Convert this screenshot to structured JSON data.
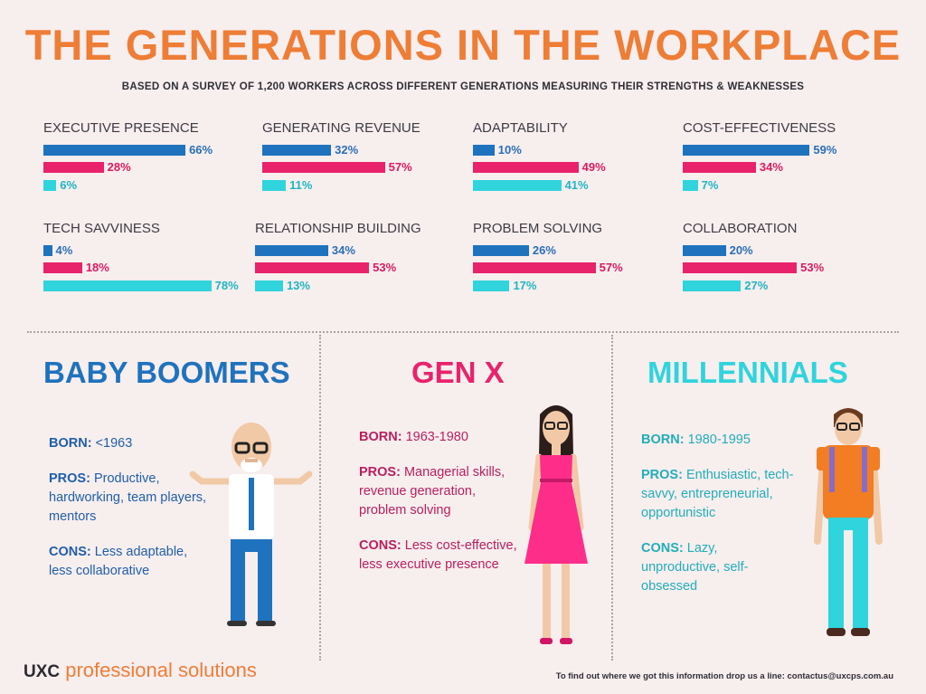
{
  "title": "THE GENERATIONS IN THE WORKPLACE",
  "subtitle": "BASED ON A SURVEY OF 1,200 WORKERS ACROSS DIFFERENT GENERATIONS MEASURING THEIR STRENGTHS & WEAKNESSES",
  "colors": {
    "boomers": "#1f72bd",
    "genx": "#e9236b",
    "millennials": "#2fd4dc",
    "accent": "#ee7d36"
  },
  "chart_data": {
    "type": "bar",
    "series": [
      {
        "key": "boomers"
      },
      {
        "key": "genx"
      },
      {
        "key": "millennials"
      }
    ],
    "charts": [
      {
        "label": "EXECUTIVE PRESENCE",
        "values": [
          66,
          28,
          6
        ],
        "labels": [
          "66%",
          "28%",
          "6%"
        ]
      },
      {
        "label": "GENERATING REVENUE",
        "values": [
          32,
          57,
          11
        ],
        "labels": [
          "32%",
          "57%",
          "11%"
        ]
      },
      {
        "label": "ADAPTABILITY",
        "values": [
          10,
          49,
          41
        ],
        "labels": [
          "10%",
          "49%",
          "41%"
        ]
      },
      {
        "label": "COST-EFFECTIVENESS",
        "values": [
          59,
          34,
          7
        ],
        "labels": [
          "59%",
          "34%",
          "7%"
        ]
      },
      {
        "label": "TECH SAVVINESS",
        "values": [
          4,
          18,
          78
        ],
        "labels": [
          "4%",
          "18%",
          "78%"
        ]
      },
      {
        "label": "RELATIONSHIP BUILDING",
        "values": [
          34,
          53,
          13
        ],
        "labels": [
          "34%",
          "53%",
          "13%"
        ]
      },
      {
        "label": "PROBLEM SOLVING",
        "values": [
          26,
          57,
          17
        ],
        "labels": [
          "26%",
          "57%",
          "17%"
        ]
      },
      {
        "label": "COLLABORATION",
        "values": [
          20,
          53,
          27
        ],
        "labels": [
          "20%",
          "53%",
          "27%"
        ]
      }
    ]
  },
  "generations": [
    {
      "name": "BABY BOOMERS",
      "born_label": "BORN:",
      "born": "<1963",
      "pros_label": "PROS:",
      "pros": "Productive, hardworking, team players, mentors",
      "cons_label": "CONS:",
      "cons": "Less adaptable, less collaborative"
    },
    {
      "name": "GEN X",
      "born_label": "BORN:",
      "born": "1963-1980",
      "pros_label": "PROS:",
      "pros": "Managerial skills, revenue generation, problem solving",
      "cons_label": "CONS:",
      "cons": "Less cost-effective, less executive presence"
    },
    {
      "name": "MILLENNIALS",
      "born_label": "BORN:",
      "born": "1980-1995",
      "pros_label": "PROS:",
      "pros": "Enthusiastic, tech-savvy, entrepreneurial, opportunistic",
      "cons_label": "CONS:",
      "cons": "Lazy, unproductive, self-obsessed"
    }
  ],
  "brand": {
    "part1": "UXC",
    "part2": "professional solutions"
  },
  "footer": "To find out where we got this information drop us a line: contactus@uxcps.com.au"
}
